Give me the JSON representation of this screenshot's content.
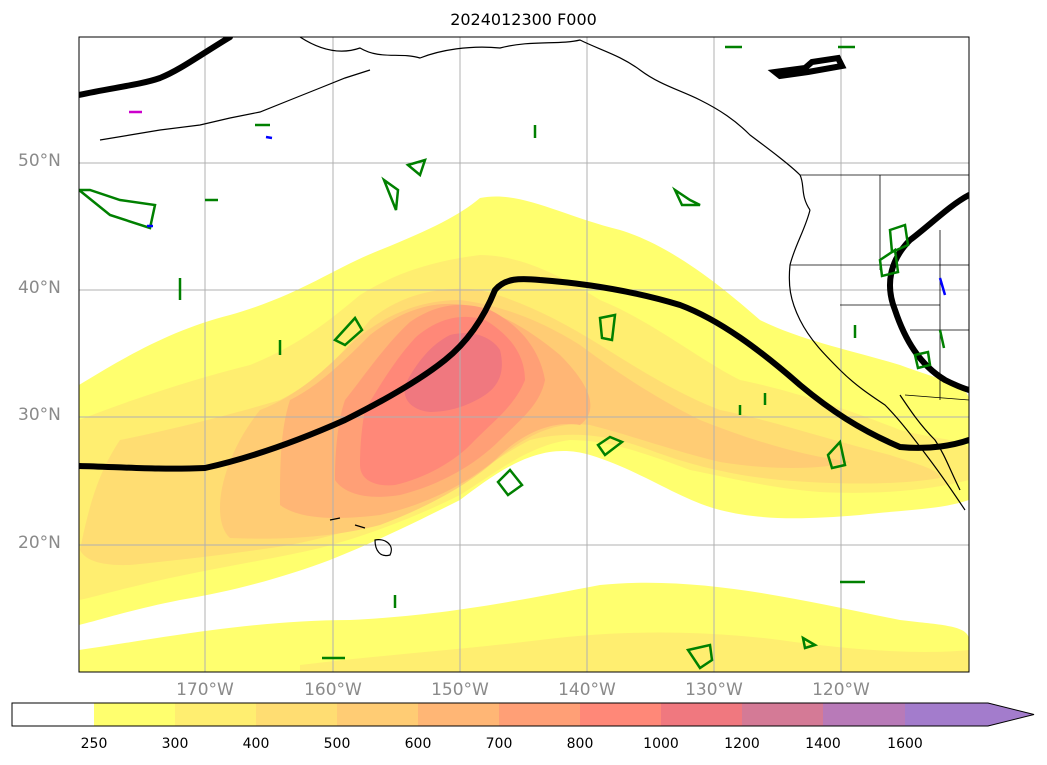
{
  "title": "2024012300 F000",
  "map": {
    "projection": "plate-carree",
    "lon_range": [
      -180,
      -110
    ],
    "lat_range": [
      10,
      60
    ],
    "gridlines": true,
    "lat_labels": [
      "50°N",
      "40°N",
      "30°N",
      "20°N"
    ],
    "lon_labels": [
      "170°W",
      "160°W",
      "150°W",
      "140°W",
      "130°W",
      "120°W"
    ],
    "coastlines": true,
    "state_borders": true,
    "fill_field_levels": [
      250,
      300,
      400,
      500,
      600,
      700,
      800,
      1000,
      1200,
      1400,
      1600
    ],
    "contour_color_thick": "#000000",
    "contour_color_green": "#008000",
    "contour_color_blue": "#0000ff",
    "contour_color_magenta": "#cc00cc"
  },
  "colorbar": {
    "extend": "max",
    "ticks": [
      "250",
      "300",
      "400",
      "500",
      "600",
      "700",
      "800",
      "1000",
      "1200",
      "1400",
      "1600"
    ],
    "colors": [
      "#ffffff",
      "#ffff6e",
      "#ffee70",
      "#ffdd72",
      "#ffcc74",
      "#ffb675",
      "#ff9f76",
      "#ff8878",
      "#f0787f",
      "#d47a96",
      "#b87ab8",
      "#a37ccc"
    ]
  }
}
